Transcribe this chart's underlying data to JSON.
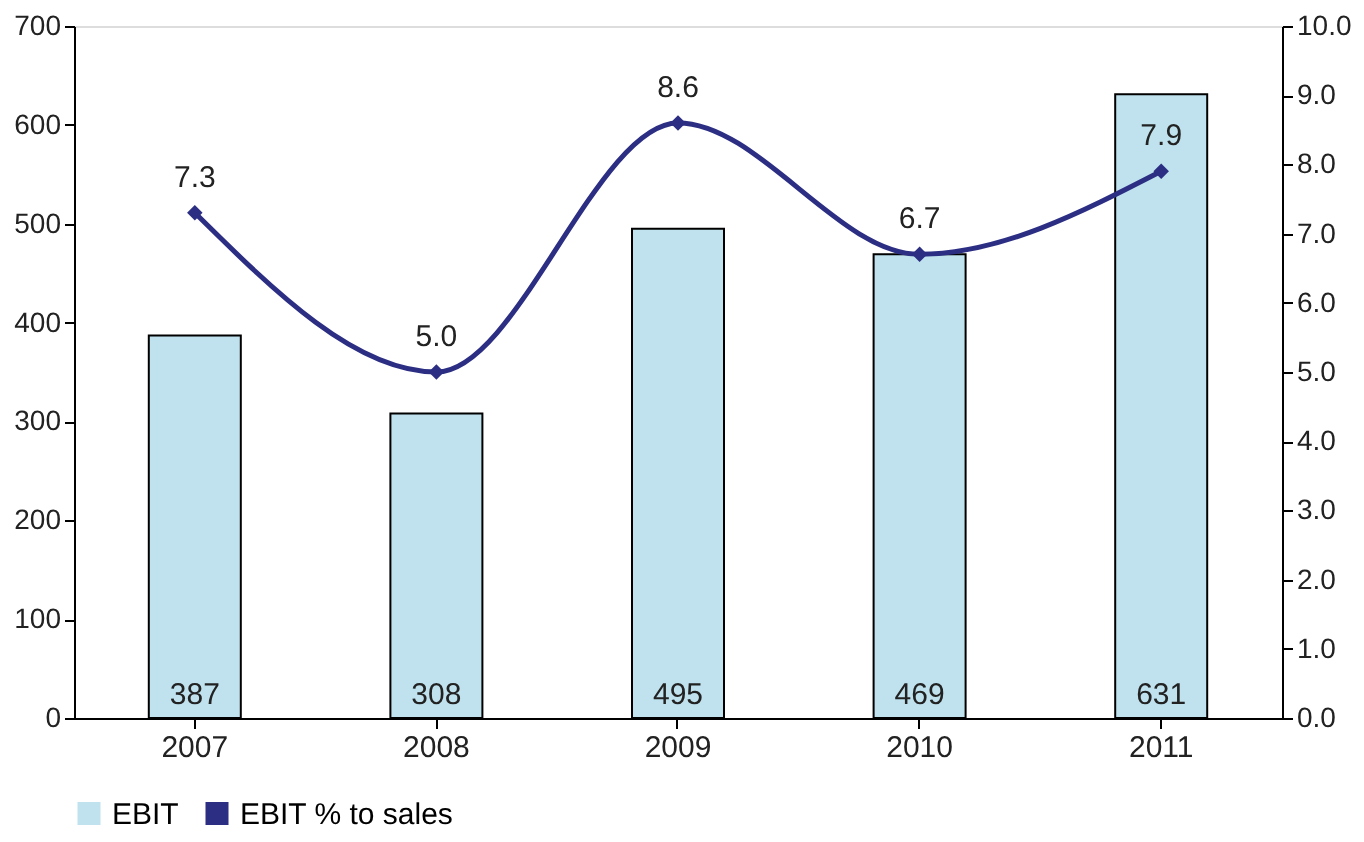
{
  "chart_data": {
    "type": "bar",
    "categories": [
      "2007",
      "2008",
      "2009",
      "2010",
      "2011"
    ],
    "series": [
      {
        "name": "EBIT",
        "color": "#bfe2ee",
        "values": [
          387,
          308,
          495,
          469,
          631
        ]
      },
      {
        "name": "EBIT % to sales",
        "type": "line",
        "axis": "y2",
        "color": "#2b2e83",
        "values": [
          7.3,
          5.0,
          8.6,
          6.7,
          7.9
        ],
        "value_labels": [
          "7.3",
          "5.0",
          "8.6",
          "6.7",
          "7.9"
        ]
      }
    ],
    "ylim": [
      0,
      700
    ],
    "yticks": [
      0,
      100,
      200,
      300,
      400,
      500,
      600,
      700
    ],
    "y2lim": [
      0,
      10
    ],
    "y2ticks": [
      {
        "value": 0,
        "label": "0.0"
      },
      {
        "value": 1,
        "label": "1.0"
      },
      {
        "value": 2,
        "label": "2.0"
      },
      {
        "value": 3,
        "label": "3.0"
      },
      {
        "value": 4,
        "label": "4.0"
      },
      {
        "value": 5,
        "label": "5.0"
      },
      {
        "value": 6,
        "label": "6.0"
      },
      {
        "value": 7,
        "label": "7.0"
      },
      {
        "value": 8,
        "label": "8.0"
      },
      {
        "value": 9,
        "label": "9.0"
      },
      {
        "value": 10,
        "label": "10.0"
      }
    ],
    "data_labels": true,
    "marker": "diamond",
    "grid": false,
    "legend": "bottom"
  }
}
